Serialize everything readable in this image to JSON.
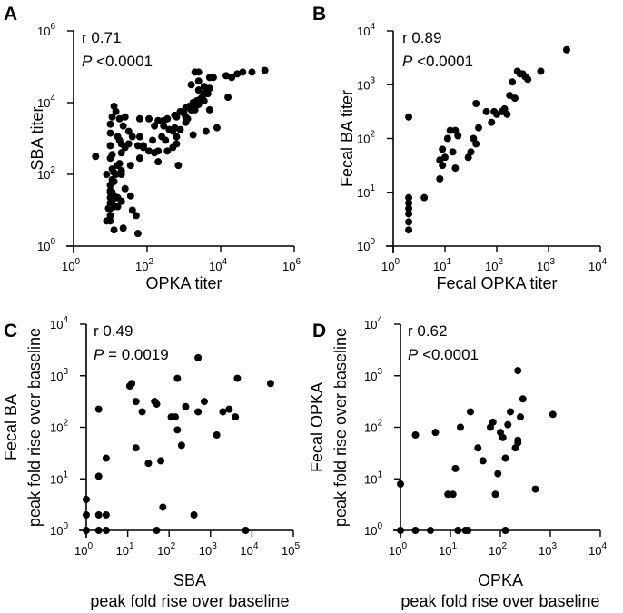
{
  "chart_data": [
    {
      "panel": "A",
      "type": "scatter",
      "xscale": "log10",
      "yscale": "log10",
      "xlabel": [
        "OPKA titer"
      ],
      "ylabel": [
        "SBA titer"
      ],
      "xlim_exp": [
        0,
        6
      ],
      "ylim_exp": [
        0,
        6
      ],
      "xticks": [
        0,
        2,
        4,
        6
      ],
      "yticks": [
        0,
        2,
        4,
        6
      ],
      "stat_r": "r 0.71",
      "stat_p_italic": "P",
      "stat_p_rest": " <0.0001",
      "points": [
        [
          1.4,
          1.6
        ],
        [
          0.6,
          2.5
        ],
        [
          1.75,
          0.35
        ],
        [
          1.7,
          0.85
        ],
        [
          0.9,
          0.7
        ],
        [
          1.3,
          1.25
        ],
        [
          1.1,
          1.4
        ],
        [
          1.6,
          1.0
        ],
        [
          1.1,
          1.8
        ],
        [
          1.35,
          0.5
        ],
        [
          1.55,
          1.4
        ],
        [
          1.0,
          0.85
        ],
        [
          1.2,
          1.1
        ],
        [
          1.0,
          1.5
        ],
        [
          1.2,
          2.25
        ],
        [
          1.0,
          2.45
        ],
        [
          0.9,
          2.0
        ],
        [
          1.15,
          2.0
        ],
        [
          1.3,
          2.1
        ],
        [
          1.1,
          2.05
        ],
        [
          1.25,
          2.3
        ],
        [
          1.3,
          2.6
        ],
        [
          1.05,
          2.15
        ],
        [
          1.55,
          2.25
        ],
        [
          1.3,
          2.0
        ],
        [
          1.5,
          2.85
        ],
        [
          1.8,
          2.45
        ],
        [
          1.05,
          2.55
        ],
        [
          1.3,
          2.85
        ],
        [
          1.0,
          2.8
        ],
        [
          1.25,
          2.95
        ],
        [
          1.0,
          3.15
        ],
        [
          1.2,
          3.05
        ],
        [
          1.4,
          2.75
        ],
        [
          1.6,
          3.05
        ],
        [
          1.35,
          3.35
        ],
        [
          1.25,
          3.55
        ],
        [
          1.05,
          3.6
        ],
        [
          1.5,
          3.2
        ],
        [
          1.75,
          2.8
        ],
        [
          1.9,
          2.8
        ],
        [
          1.8,
          3.05
        ],
        [
          1.1,
          3.9
        ],
        [
          1.4,
          3.6
        ],
        [
          1.8,
          3.55
        ],
        [
          1.9,
          2.75
        ],
        [
          2.05,
          2.65
        ],
        [
          2.3,
          2.35
        ],
        [
          1.8,
          2.45
        ],
        [
          2.2,
          2.6
        ],
        [
          2.45,
          3.35
        ],
        [
          2.55,
          2.65
        ],
        [
          2.5,
          2.95
        ],
        [
          2.3,
          2.65
        ],
        [
          2.7,
          2.75
        ],
        [
          2.8,
          2.85
        ],
        [
          2.7,
          3.2
        ],
        [
          2.8,
          3.05
        ],
        [
          2.85,
          2.25
        ],
        [
          2.9,
          3.25
        ],
        [
          2.6,
          3.25
        ],
        [
          2.3,
          3.5
        ],
        [
          2.45,
          3.5
        ],
        [
          2.55,
          3.55
        ],
        [
          2.75,
          3.65
        ],
        [
          2.8,
          3.6
        ],
        [
          3.05,
          3.6
        ],
        [
          3.1,
          3.55
        ],
        [
          3.0,
          3.7
        ],
        [
          2.9,
          3.75
        ],
        [
          3.2,
          3.8
        ],
        [
          3.2,
          3.8
        ],
        [
          3.3,
          3.8
        ],
        [
          3.05,
          3.85
        ],
        [
          3.15,
          3.9
        ],
        [
          3.3,
          3.9
        ],
        [
          3.4,
          3.95
        ],
        [
          3.25,
          4.0
        ],
        [
          3.35,
          4.05
        ],
        [
          3.45,
          4.1
        ],
        [
          3.5,
          4.15
        ],
        [
          3.55,
          4.05
        ],
        [
          3.6,
          4.3
        ],
        [
          3.65,
          4.25
        ],
        [
          3.55,
          4.25
        ],
        [
          3.4,
          4.35
        ],
        [
          3.55,
          4.45
        ],
        [
          3.7,
          4.4
        ],
        [
          3.2,
          4.5
        ],
        [
          3.4,
          4.6
        ],
        [
          3.7,
          4.7
        ],
        [
          3.8,
          4.7
        ],
        [
          3.3,
          4.85
        ],
        [
          3.4,
          4.85
        ],
        [
          4.15,
          4.75
        ],
        [
          4.2,
          4.15
        ],
        [
          3.7,
          3.8
        ],
        [
          3.9,
          3.3
        ],
        [
          4.3,
          4.7
        ],
        [
          4.45,
          4.8
        ],
        [
          4.6,
          4.85
        ],
        [
          4.85,
          4.85
        ],
        [
          5.2,
          4.9
        ],
        [
          3.25,
          3.1
        ],
        [
          3.6,
          3.2
        ],
        [
          3.05,
          3.45
        ],
        [
          2.75,
          3.3
        ],
        [
          2.05,
          3.55
        ],
        [
          2.2,
          3.35
        ],
        [
          2.15,
          2.95
        ],
        [
          2.4,
          3.05
        ],
        [
          1.0,
          3.4
        ],
        [
          1.15,
          3.75
        ],
        [
          1.0,
          1.05
        ],
        [
          1.0,
          1.2
        ],
        [
          1.0,
          1.55
        ],
        [
          1.05,
          1.25
        ],
        [
          1.1,
          1.1
        ],
        [
          1.2,
          1.35
        ],
        [
          1.0,
          1.35
        ],
        [
          0.95,
          1.05
        ],
        [
          1.0,
          1.7
        ],
        [
          1.05,
          1.85
        ],
        [
          1.0,
          0.7
        ],
        [
          1.1,
          0.45
        ],
        [
          1.05,
          1.5
        ]
      ]
    },
    {
      "panel": "B",
      "type": "scatter",
      "xscale": "log10",
      "yscale": "log10",
      "xlabel": [
        "Fecal OPKA titer"
      ],
      "ylabel": [
        "Fecal BA titer"
      ],
      "xlim_exp": [
        0,
        4
      ],
      "ylim_exp": [
        0,
        4
      ],
      "xticks": [
        0,
        1,
        2,
        3,
        4
      ],
      "yticks": [
        0,
        1,
        2,
        3,
        4
      ],
      "stat_r": "r 0.89",
      "stat_p_italic": "P",
      "stat_p_rest": " <0.0001",
      "points": [
        [
          0.3,
          0.3
        ],
        [
          0.3,
          0.45
        ],
        [
          0.3,
          0.6
        ],
        [
          0.3,
          0.7
        ],
        [
          0.3,
          0.8
        ],
        [
          0.3,
          0.9
        ],
        [
          0.3,
          2.4
        ],
        [
          0.6,
          0.9
        ],
        [
          0.9,
          1.25
        ],
        [
          0.95,
          1.5
        ],
        [
          0.9,
          1.6
        ],
        [
          0.95,
          1.8
        ],
        [
          1.0,
          1.65
        ],
        [
          1.05,
          2.0
        ],
        [
          1.1,
          2.15
        ],
        [
          1.2,
          2.15
        ],
        [
          1.2,
          1.45
        ],
        [
          1.15,
          1.75
        ],
        [
          1.25,
          2.05
        ],
        [
          1.45,
          1.65
        ],
        [
          1.5,
          1.75
        ],
        [
          1.55,
          2.0
        ],
        [
          1.6,
          2.65
        ],
        [
          1.6,
          1.9
        ],
        [
          1.65,
          2.2
        ],
        [
          1.8,
          2.5
        ],
        [
          1.9,
          2.3
        ],
        [
          1.95,
          2.5
        ],
        [
          2.0,
          2.45
        ],
        [
          2.1,
          2.5
        ],
        [
          2.15,
          2.55
        ],
        [
          2.2,
          2.45
        ],
        [
          2.25,
          2.8
        ],
        [
          2.35,
          2.75
        ],
        [
          2.3,
          3.05
        ],
        [
          2.4,
          3.25
        ],
        [
          2.5,
          3.2
        ],
        [
          2.45,
          3.2
        ],
        [
          2.55,
          3.15
        ],
        [
          2.6,
          3.1
        ],
        [
          2.85,
          3.25
        ],
        [
          3.35,
          3.65
        ]
      ]
    },
    {
      "panel": "C",
      "type": "scatter",
      "xscale": "log10",
      "yscale": "log10",
      "xlabel": [
        "SBA",
        "peak fold rise over baseline"
      ],
      "ylabel": [
        "Fecal BA",
        "peak fold rise over baseline"
      ],
      "xlim_exp": [
        0,
        5
      ],
      "ylim_exp": [
        0,
        4
      ],
      "xticks": [
        0,
        1,
        2,
        3,
        4,
        5
      ],
      "yticks": [
        0,
        1,
        2,
        3,
        4
      ],
      "stat_r": "r 0.49",
      "stat_p_italic": "P",
      "stat_p_rest": " = 0.0019",
      "points": [
        [
          0.0,
          0.0
        ],
        [
          0.0,
          0.3
        ],
        [
          0.0,
          0.6
        ],
        [
          0.3,
          0.3
        ],
        [
          0.3,
          0.0
        ],
        [
          0.48,
          0.3
        ],
        [
          0.48,
          0.0
        ],
        [
          0.3,
          1.05
        ],
        [
          0.3,
          2.35
        ],
        [
          0.48,
          1.4
        ],
        [
          1.05,
          2.8
        ],
        [
          1.1,
          2.85
        ],
        [
          1.2,
          2.5
        ],
        [
          1.2,
          1.6
        ],
        [
          1.35,
          2.3
        ],
        [
          1.5,
          1.3
        ],
        [
          1.65,
          2.5
        ],
        [
          1.7,
          2.45
        ],
        [
          1.7,
          0.0
        ],
        [
          1.8,
          1.35
        ],
        [
          1.85,
          0.45
        ],
        [
          2.05,
          2.2
        ],
        [
          2.15,
          2.2
        ],
        [
          2.2,
          2.95
        ],
        [
          2.2,
          1.95
        ],
        [
          2.3,
          1.65
        ],
        [
          2.4,
          2.4
        ],
        [
          2.6,
          0.3
        ],
        [
          2.7,
          2.3
        ],
        [
          2.7,
          3.35
        ],
        [
          2.85,
          2.5
        ],
        [
          3.15,
          1.85
        ],
        [
          3.3,
          2.3
        ],
        [
          3.45,
          2.35
        ],
        [
          3.6,
          2.2
        ],
        [
          3.65,
          2.95
        ],
        [
          3.85,
          0.0
        ],
        [
          4.45,
          2.85
        ]
      ]
    },
    {
      "panel": "D",
      "type": "scatter",
      "xscale": "log10",
      "yscale": "log10",
      "xlabel": [
        "OPKA",
        "peak fold rise over baseline"
      ],
      "ylabel": [
        "Fecal OPKA",
        "peak fold rise over baseline"
      ],
      "xlim_exp": [
        0,
        4
      ],
      "ylim_exp": [
        0,
        4
      ],
      "xticks": [
        0,
        1,
        2,
        3,
        4
      ],
      "yticks": [
        0,
        1,
        2,
        3,
        4
      ],
      "stat_r": "r 0.62",
      "stat_p_italic": "P",
      "stat_p_rest": " <0.0001",
      "points": [
        [
          0.0,
          0.0
        ],
        [
          0.0,
          0.9
        ],
        [
          0.3,
          0.0
        ],
        [
          0.3,
          1.85
        ],
        [
          0.6,
          0.0
        ],
        [
          0.7,
          1.9
        ],
        [
          0.95,
          0.7
        ],
        [
          1.05,
          0.7
        ],
        [
          1.1,
          1.2
        ],
        [
          1.15,
          0.0
        ],
        [
          1.2,
          2.0
        ],
        [
          1.3,
          0.0
        ],
        [
          1.35,
          0.0
        ],
        [
          1.4,
          2.3
        ],
        [
          1.55,
          1.6
        ],
        [
          1.65,
          1.35
        ],
        [
          1.8,
          2.0
        ],
        [
          1.85,
          2.1
        ],
        [
          1.95,
          1.1
        ],
        [
          1.9,
          0.7
        ],
        [
          2.0,
          1.9
        ],
        [
          2.05,
          1.8
        ],
        [
          2.1,
          0.0
        ],
        [
          2.1,
          1.4
        ],
        [
          2.15,
          2.05
        ],
        [
          2.2,
          2.3
        ],
        [
          2.3,
          1.6
        ],
        [
          2.35,
          1.7
        ],
        [
          2.35,
          1.75
        ],
        [
          2.4,
          2.2
        ],
        [
          2.45,
          2.55
        ],
        [
          2.35,
          3.1
        ],
        [
          2.7,
          0.8
        ],
        [
          3.05,
          2.25
        ]
      ]
    }
  ]
}
